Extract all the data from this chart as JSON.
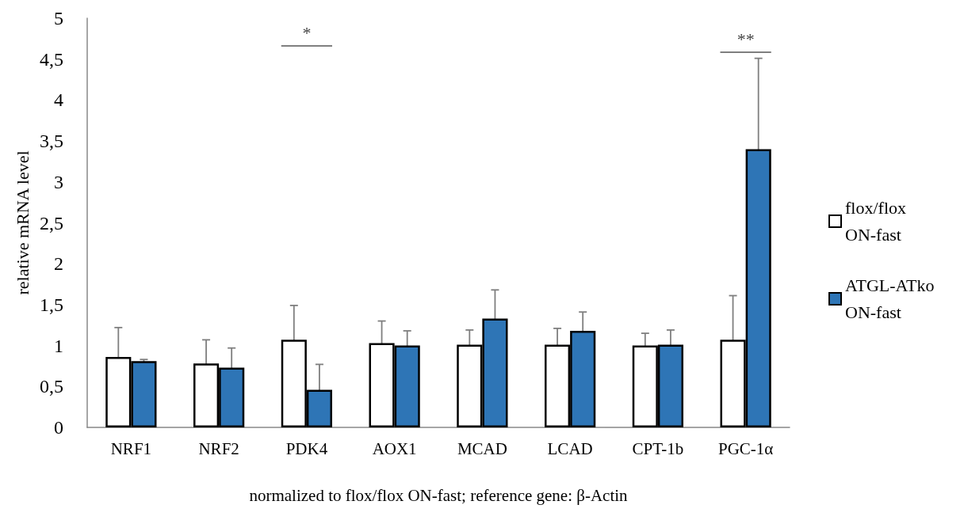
{
  "chart_data": {
    "type": "bar",
    "categories": [
      "NRF1",
      "NRF2",
      "PDK4",
      "AOX1",
      "MCAD",
      "LCAD",
      "CPT-1b",
      "PGC-1α"
    ],
    "series": [
      {
        "name": "flox/flox ON-fast",
        "color": "#ffffff",
        "values": [
          0.86,
          0.78,
          1.07,
          1.03,
          1.01,
          1.01,
          1.0,
          1.07
        ],
        "errors": [
          0.36,
          0.29,
          0.42,
          0.27,
          0.18,
          0.2,
          0.15,
          0.54
        ]
      },
      {
        "name": "ATGL-ATko ON-fast",
        "color": "#2e75b6",
        "values": [
          0.81,
          0.73,
          0.46,
          1.0,
          1.33,
          1.18,
          1.01,
          3.4
        ],
        "errors": [
          0.02,
          0.24,
          0.31,
          0.18,
          0.35,
          0.23,
          0.18,
          1.11
        ]
      }
    ],
    "ylabel": "relative mRNA level",
    "xlabel": "normalized to flox/flox ON-fast; reference gene: β-Actin",
    "ylim": [
      0,
      5
    ],
    "yticks": [
      0,
      {
        "value": 0.5,
        "label": "0,5"
      },
      1,
      {
        "value": 1.5,
        "label": "1,5"
      },
      2,
      {
        "value": 2.5,
        "label": "2,5"
      },
      3,
      {
        "value": 3.5,
        "label": "3,5"
      },
      4,
      {
        "value": 4.5,
        "label": "4,5"
      },
      5
    ],
    "annotations": [
      "*",
      "**"
    ],
    "grid": false,
    "legend": "right"
  }
}
